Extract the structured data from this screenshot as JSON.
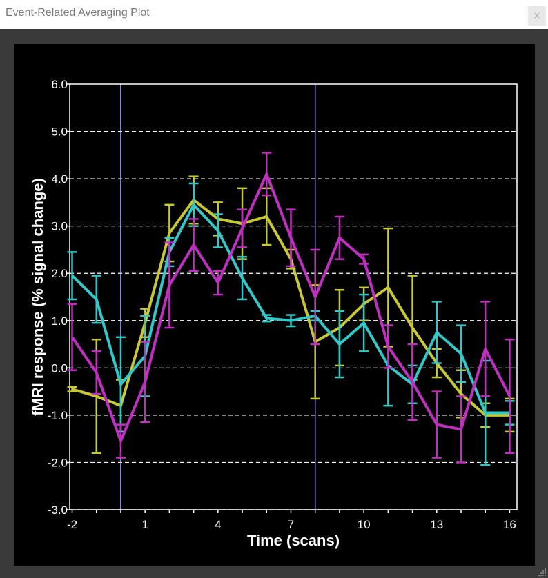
{
  "window": {
    "title": "Event-Related Averaging Plot",
    "close_label": "×"
  },
  "colors": {
    "background": "#000000",
    "axes": "#ffffff",
    "grid": "#ffffff",
    "marker_line": "#a8a8ff",
    "series": [
      "#c8c832",
      "#30c8c8",
      "#c030c0"
    ]
  },
  "chart_data": {
    "type": "line",
    "xlabel": "Time (scans)",
    "ylabel": "fMRI response (% signal change)",
    "xlim": [
      -2.1,
      16.3
    ],
    "ylim": [
      -3.0,
      6.0
    ],
    "x_ticks": [
      -2,
      1,
      4,
      7,
      10,
      13,
      16
    ],
    "y_ticks": [
      6,
      5,
      4,
      3,
      2,
      1,
      0,
      -1,
      -2,
      -3
    ],
    "y_tick_labels": [
      "6.0",
      "5.0",
      "4.0",
      "3.0",
      "2.0",
      "1.0",
      "0.0",
      "-1.0",
      "-2.0",
      "-3.0"
    ],
    "grid": "horizontal dashed",
    "vertical_markers": [
      0,
      8
    ],
    "x": [
      -2,
      -1,
      0,
      1,
      2,
      3,
      4,
      5,
      6,
      7,
      8,
      9,
      10,
      11,
      12,
      13,
      14,
      15,
      16
    ],
    "series": [
      {
        "values": [
          -0.45,
          -0.6,
          -0.8,
          0.95,
          2.85,
          3.55,
          3.15,
          3.05,
          3.2,
          2.3,
          0.55,
          0.85,
          1.35,
          1.7,
          0.85,
          0.1,
          -0.55,
          -1.0,
          -1.0
        ],
        "errors": [
          0.05,
          1.2,
          0.55,
          0.3,
          0.6,
          0.5,
          0.35,
          0.75,
          0.6,
          0.2,
          1.2,
          0.8,
          0.35,
          1.25,
          1.1,
          0.3,
          0.5,
          0.25,
          0.35
        ]
      },
      {
        "values": [
          1.95,
          1.45,
          -0.35,
          0.25,
          2.45,
          3.45,
          2.9,
          1.9,
          1.05,
          1.0,
          1.1,
          0.5,
          0.95,
          0.05,
          -0.35,
          0.75,
          0.3,
          -0.95,
          -0.95
        ],
        "errors": [
          0.5,
          0.5,
          1.0,
          0.85,
          0.3,
          0.45,
          0.35,
          0.45,
          0.07,
          0.12,
          0.1,
          0.7,
          0.6,
          0.85,
          0.4,
          0.65,
          0.6,
          1.1,
          0.25
        ]
      },
      {
        "values": [
          0.65,
          -0.1,
          -1.55,
          -0.3,
          1.75,
          2.6,
          1.8,
          2.95,
          4.1,
          2.75,
          1.5,
          2.75,
          2.3,
          0.45,
          -0.3,
          -1.2,
          -1.3,
          0.4,
          -0.6
        ],
        "errors": [
          0.7,
          0.45,
          0.35,
          0.85,
          0.9,
          0.55,
          0.25,
          0.4,
          0.45,
          0.6,
          1.0,
          0.45,
          0.1,
          0.45,
          0.8,
          0.7,
          0.7,
          1.0,
          1.2
        ]
      }
    ]
  }
}
